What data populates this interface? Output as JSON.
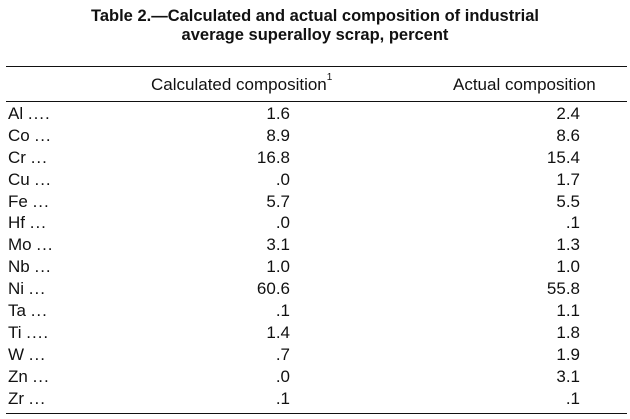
{
  "title": {
    "line1": "Table 2.—Calculated and actual composition of industrial",
    "line2": "average superalloy scrap, percent"
  },
  "header": {
    "calculated": "Calculated composition",
    "calculated_footnote": "1",
    "actual": "Actual composition"
  },
  "rows": [
    {
      "element": "Al",
      "dots": "....",
      "calculated": "1.6",
      "actual": "2.4"
    },
    {
      "element": "Co",
      "dots": "...",
      "calculated": "8.9",
      "actual": "8.6"
    },
    {
      "element": "Cr",
      "dots": "...",
      "calculated": "16.8",
      "actual": "15.4"
    },
    {
      "element": "Cu",
      "dots": "...",
      "calculated": ".0",
      "actual": "1.7"
    },
    {
      "element": "Fe",
      "dots": "...",
      "calculated": "5.7",
      "actual": "5.5"
    },
    {
      "element": "Hf",
      "dots": "...",
      "calculated": ".0",
      "actual": ".1"
    },
    {
      "element": "Mo",
      "dots": "...",
      "calculated": "3.1",
      "actual": "1.3"
    },
    {
      "element": "Nb",
      "dots": "...",
      "calculated": "1.0",
      "actual": "1.0"
    },
    {
      "element": "Ni",
      "dots": "...",
      "calculated": "60.6",
      "actual": "55.8"
    },
    {
      "element": "Ta",
      "dots": "...",
      "calculated": ".1",
      "actual": "1.1"
    },
    {
      "element": "Ti",
      "dots": "....",
      "calculated": "1.4",
      "actual": "1.8"
    },
    {
      "element": "W",
      "dots": "...",
      "calculated": ".7",
      "actual": "1.9"
    },
    {
      "element": "Zn",
      "dots": "...",
      "calculated": ".0",
      "actual": "3.1"
    },
    {
      "element": "Zr",
      "dots": "...",
      "calculated": ".1",
      "actual": ".1"
    }
  ]
}
